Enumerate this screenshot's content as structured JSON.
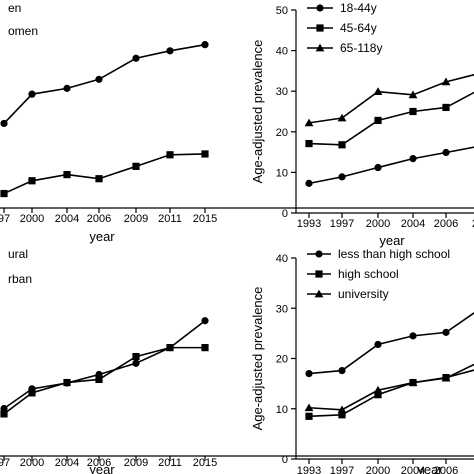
{
  "chart_data": [
    {
      "type": "line",
      "panel": "top-left",
      "categories": [
        "97",
        "2000",
        "2004",
        "2006",
        "2009",
        "2011",
        "2015"
      ],
      "series": [
        {
          "name": "en",
          "marker": "circle",
          "values": [
            24.5,
            31.6,
            33.0,
            35.2,
            40.3,
            42.1,
            43.6
          ]
        },
        {
          "name": "omen",
          "marker": "square",
          "values": [
            7.5,
            10.6,
            12.1,
            11.1,
            14.1,
            16.9,
            17.1
          ]
        }
      ],
      "ylim": [
        4,
        52
      ],
      "xlabel": "year",
      "ylabel": "",
      "yticks_shown": false,
      "legend_position": "top-left",
      "grid": false
    },
    {
      "type": "line",
      "panel": "top-right",
      "categories": [
        "1993",
        "1997",
        "2000",
        "2004",
        "2006",
        "20"
      ],
      "series": [
        {
          "name": "18-44y",
          "marker": "circle",
          "values": [
            7.3,
            8.9,
            11.2,
            13.4,
            14.9,
            16.4
          ]
        },
        {
          "name": "45-64y",
          "marker": "square",
          "values": [
            17.1,
            16.8,
            22.8,
            25.0,
            26.0,
            30.2
          ]
        },
        {
          "name": "65-118y",
          "marker": "triangle",
          "values": [
            22.2,
            23.4,
            29.9,
            29.1,
            32.3,
            34.3
          ]
        }
      ],
      "yticks": [
        0,
        10,
        20,
        30,
        40,
        50
      ],
      "ylim": [
        0,
        50
      ],
      "xlabel": "year",
      "ylabel": "Age-adjusted prevalence",
      "legend_position": "top-left",
      "grid": false
    },
    {
      "type": "line",
      "panel": "bottom-left",
      "categories": [
        "97",
        "2000",
        "2004",
        "2006",
        "2009",
        "2011",
        "2015"
      ],
      "series": [
        {
          "name": "ural",
          "marker": "circle",
          "values": [
            14.6,
            19.0,
            20.3,
            22.2,
            24.7,
            28.2,
            34.2
          ]
        },
        {
          "name": "rban",
          "marker": "square",
          "values": [
            13.4,
            18.1,
            20.4,
            21.1,
            26.2,
            28.2,
            28.2
          ]
        }
      ],
      "ylim": [
        4,
        50
      ],
      "xlabel": "year",
      "ylabel": "",
      "yticks_shown": false,
      "legend_position": "top-left",
      "grid": false
    },
    {
      "type": "line",
      "panel": "bottom-right",
      "categories": [
        "1993",
        "1997",
        "2000",
        "2004",
        "2006",
        "2"
      ],
      "series": [
        {
          "name": "less than high school",
          "marker": "circle",
          "values": [
            17.0,
            17.6,
            22.8,
            24.5,
            25.2,
            29.6
          ]
        },
        {
          "name": "high school",
          "marker": "square",
          "values": [
            8.5,
            8.8,
            12.8,
            15.2,
            16.2,
            17.9
          ]
        },
        {
          "name": "university",
          "marker": "triangle",
          "values": [
            10.2,
            9.8,
            13.7,
            15.2,
            16.1,
            19.2
          ]
        }
      ],
      "yticks": [
        0,
        10,
        20,
        30,
        40
      ],
      "ylim": [
        0,
        40
      ],
      "xlabel": "year",
      "ylabel": "Age-adjusted prevalence",
      "legend_position": "top-left",
      "grid": false
    }
  ]
}
